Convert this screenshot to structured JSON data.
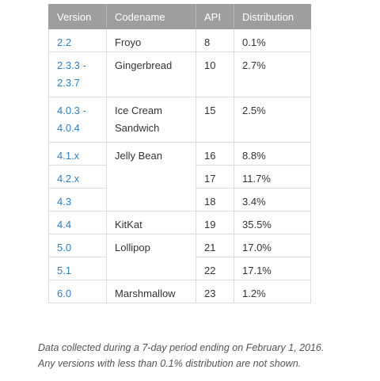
{
  "table": {
    "headers": {
      "version": "Version",
      "codename": "Codename",
      "api": "API",
      "distribution": "Distribution"
    },
    "rows": [
      {
        "version": [
          "2.2"
        ],
        "codename": [
          "Froyo"
        ],
        "api": "8",
        "distribution": "0.1%"
      },
      {
        "version": [
          "2.3.3 -",
          "2.3.7"
        ],
        "codename": [
          "Gingerbread"
        ],
        "api": "10",
        "distribution": "2.7%"
      },
      {
        "version": [
          "4.0.3 -",
          "4.0.4"
        ],
        "codename": [
          "Ice Cream",
          "Sandwich"
        ],
        "api": "15",
        "distribution": "2.5%"
      },
      {
        "version": [
          "4.1.x"
        ],
        "codename": [
          "Jelly Bean"
        ],
        "api": "16",
        "distribution": "8.8%"
      },
      {
        "version": [
          "4.2.x"
        ],
        "api": "17",
        "distribution": "11.7%"
      },
      {
        "version": [
          "4.3"
        ],
        "api": "18",
        "distribution": "3.4%"
      },
      {
        "version": [
          "4.4"
        ],
        "codename": [
          "KitKat"
        ],
        "api": "19",
        "distribution": "35.5%"
      },
      {
        "version": [
          "5.0"
        ],
        "codename": [
          "Lollipop"
        ],
        "api": "21",
        "distribution": "17.0%"
      },
      {
        "version": [
          "5.1"
        ],
        "api": "22",
        "distribution": "17.1%"
      },
      {
        "version": [
          "6.0"
        ],
        "codename": [
          "Marshmallow"
        ],
        "api": "23",
        "distribution": "1.2%"
      }
    ]
  },
  "notes": {
    "line1": "Data collected during a 7-day period ending on February 1, 2016.",
    "line2": "Any versions with less than 0.1% distribution are not shown."
  },
  "colors": {
    "header_bg": "#9e9e9e",
    "version_link": "#2f7fc1",
    "border": "#dcdcdc"
  }
}
